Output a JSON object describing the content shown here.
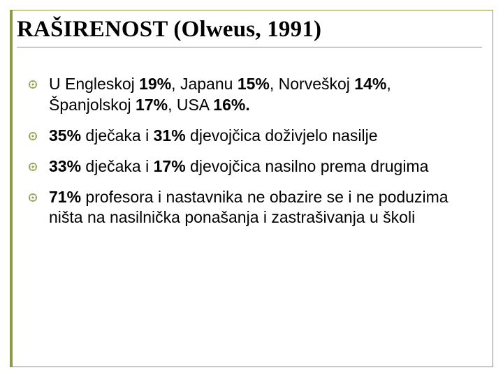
{
  "accent_color": "#8a9a45",
  "title": "RAŠIRENOST (Olweus, 1991)",
  "bullets": [
    {
      "runs": [
        {
          "t": "U Engleskoj ",
          "b": false
        },
        {
          "t": "19%",
          "b": true
        },
        {
          "t": ", Japanu ",
          "b": false
        },
        {
          "t": "15%",
          "b": true
        },
        {
          "t": ", Norveškoj ",
          "b": false
        },
        {
          "t": "14%",
          "b": true
        },
        {
          "t": ", Španjolskoj ",
          "b": false
        },
        {
          "t": "17%",
          "b": true
        },
        {
          "t": ", USA ",
          "b": false
        },
        {
          "t": "16%.",
          "b": true
        }
      ]
    },
    {
      "runs": [
        {
          "t": "35%",
          "b": true
        },
        {
          "t": " dječaka i ",
          "b": false
        },
        {
          "t": "31%",
          "b": true
        },
        {
          "t": " djevojčica doživjelo nasilje",
          "b": false
        }
      ]
    },
    {
      "runs": [
        {
          "t": "33%",
          "b": true
        },
        {
          "t": " dječaka i ",
          "b": false
        },
        {
          "t": "17%",
          "b": true
        },
        {
          "t": " djevojčica nasilno prema drugima",
          "b": false
        }
      ]
    },
    {
      "runs": [
        {
          "t": "71%",
          "b": true
        },
        {
          "t": " profesora i nastavnika ne obazire se i ne poduzima ništa na nasilnička ponašanja i zastrašivanja u školi",
          "b": false
        }
      ]
    }
  ]
}
